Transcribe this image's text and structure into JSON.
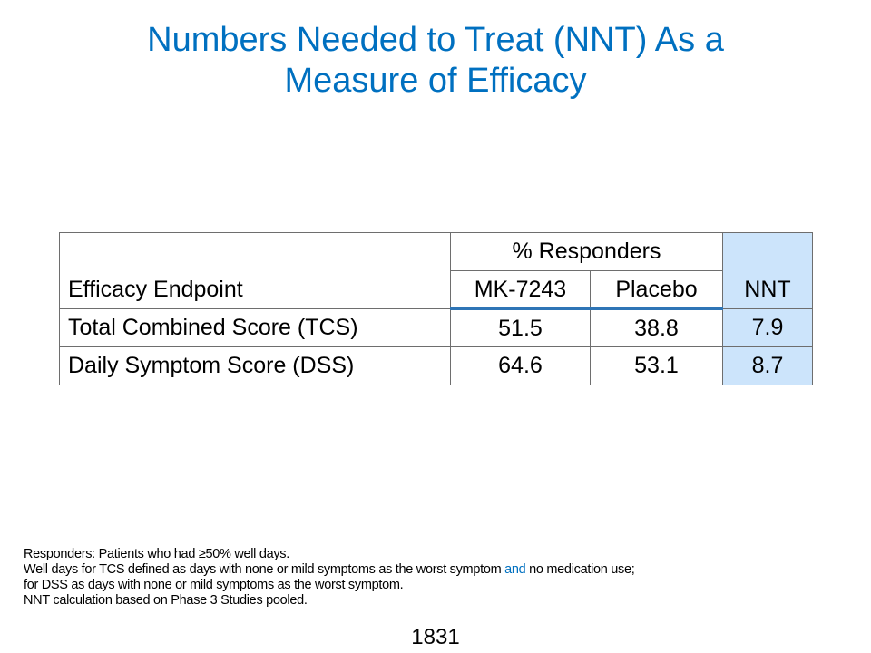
{
  "slide": {
    "title_line1": "Numbers Needed to Treat (NNT) As a",
    "title_line2": "Measure of Efficacy",
    "page_number": "1831",
    "colors": {
      "title": "#0070c0",
      "nnt_column_fill": "#cce4fb",
      "header_rule": "#2e75b6"
    }
  },
  "table": {
    "endpoint_header": "Efficacy Endpoint",
    "responders_header": "% Responders",
    "mk_header": "MK-7243",
    "placebo_header": "Placebo",
    "nnt_header": "NNT",
    "rows": [
      {
        "endpoint": "Total Combined Score (TCS)",
        "mk": "51.5",
        "placebo": "38.8",
        "nnt": "7.9"
      },
      {
        "endpoint": "Daily Symptom Score (DSS)",
        "mk": "64.6",
        "placebo": "53.1",
        "nnt": "8.7"
      }
    ]
  },
  "footnotes": {
    "line1": "Responders: Patients who had ≥50% well days.",
    "line2_before": "Well days for TCS defined as days with none or mild symptoms as the worst symptom ",
    "line2_accent": "and",
    "line2_after": " no medication use;",
    "line3": "for DSS as days with none or mild symptoms as the worst symptom.",
    "line4": "NNT calculation based on Phase 3 Studies pooled."
  }
}
